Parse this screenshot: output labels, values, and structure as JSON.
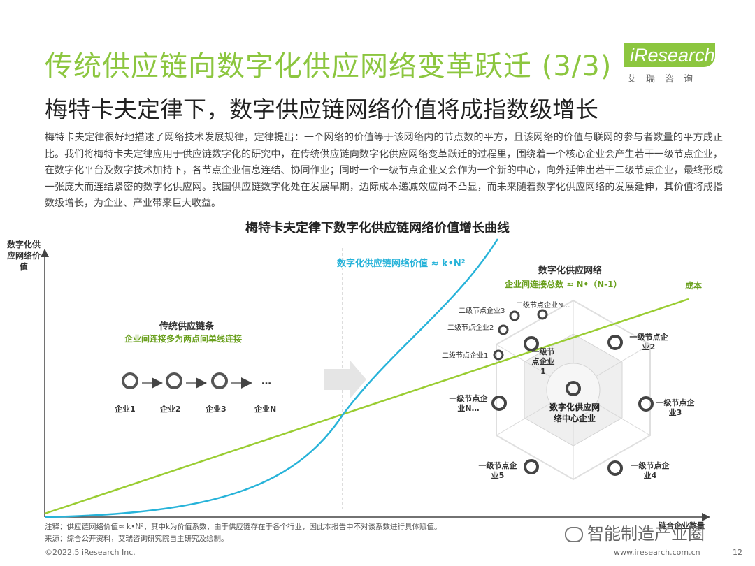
{
  "header": {
    "title": "传统供应链向数字化供应网络变革跃迁 (3/3)",
    "subtitle": "梅特卡夫定律下，数字供应链网络价值将成指数级增长",
    "logo_text": "iResearch",
    "logo_cn": "艾瑞咨询"
  },
  "body": "梅特卡夫定律很好地描述了网络技术发展规律，定律提出：一个网络的价值等于该网络内的节点数的平方，且该网络的价值与联网的参与者数量的平方成正比。我们将梅特卡夫定律应用于供应链数字化的研究中，在传统供应链向数字化供应网络变革跃迁的过程里，围绕着一个核心企业会产生若干一级节点企业，在数字化平台及数字技术加持下，各节点企业信息连结、协同作业；同时一个一级节点企业又会作为一个新的中心，向外延伸出若干二级节点企业，最终形成一张庞大而连结紧密的数字化供应网。我国供应链数字化处在发展早期，边际成本递减效应尚不凸显，而未来随着数字化供应网络的发展延伸，其价值将成指数级增长，为企业、产业带来巨大收益。",
  "chart": {
    "title": "梅特卡夫定律下数字化供应链网络价值增长曲线",
    "y_label": "数字化供应网络价值",
    "x_label": "链合企业数量",
    "curve_label": "数字化供应链网络价值 ≈ k•N²",
    "cost_label": "成本",
    "traditional_title": "传统供应链条",
    "traditional_sub": "企业间连接多为两点间单线连接",
    "chain_nodes": [
      "企业1",
      "企业2",
      "企业3",
      "企业N"
    ],
    "chain_ellipsis": "…",
    "network_title": "数字化供应网络",
    "network_sub": "企业间连接总数 ≈ N•（N-1）",
    "center": "数字化供应网络中心企业",
    "first_level": [
      "一级节点企业1",
      "一级节点企业2",
      "一级节点企业3",
      "一级节点企业4",
      "一级节点企业5",
      "一级节点企业N…"
    ],
    "second_level": [
      "二级节点企业1",
      "二级节点企业2",
      "二级节点企业3",
      "二级节点企业N…"
    ],
    "colors": {
      "value_curve": "#27b3d9",
      "cost_line": "#9acd32",
      "accent": "#8cc63f"
    }
  },
  "notes": {
    "note": "注释：供应链网络价值≈ k•N²，其中k为价值系数，由于供应链存在于各个行业，因此本报告中不对该系数进行具体赋值。",
    "source": "来源：综合公开资料，艾瑞咨询研究院自主研究及绘制。"
  },
  "footer": {
    "copyright": "©2022.5 iResearch Inc.",
    "url": "www.iresearch.com.cn",
    "page": "12",
    "watermark": "智能制造产业圈"
  }
}
